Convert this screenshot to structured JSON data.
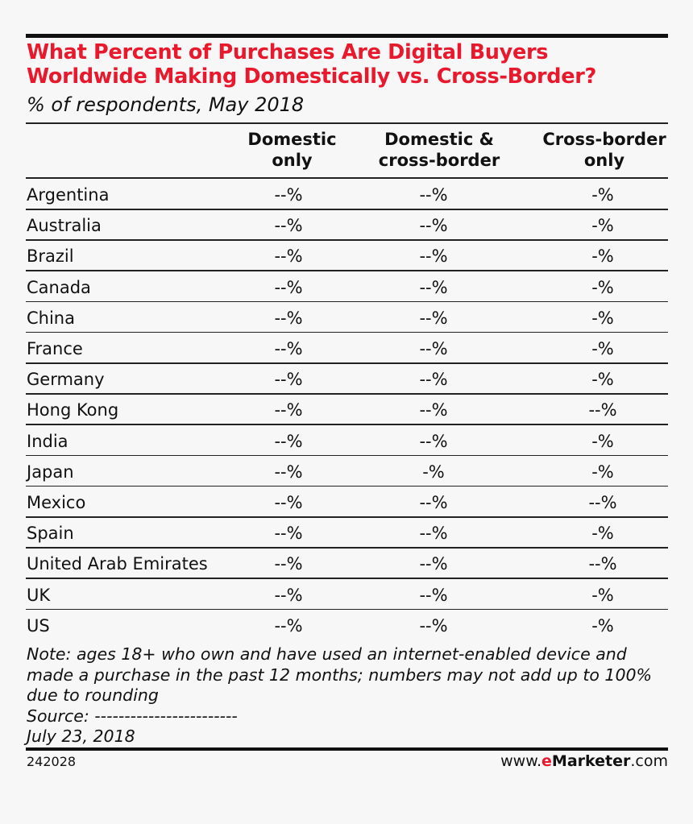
{
  "chart_data": {
    "type": "table",
    "title": "What Percent of Purchases Are Digital Buyers Worldwide Making Domestically vs. Cross-Border?",
    "subtitle": "% of respondents, May 2018",
    "columns": [
      "Domestic only",
      "Domestic & cross-border",
      "Cross-border only"
    ],
    "column_headers": [
      [
        "Domestic",
        "only"
      ],
      [
        "Domestic &",
        "cross-border"
      ],
      [
        "Cross-border",
        "only"
      ]
    ],
    "rows": [
      {
        "label": "Argentina",
        "values": [
          "--%",
          "--%",
          "-%"
        ]
      },
      {
        "label": "Australia",
        "values": [
          "--%",
          "--%",
          "-%"
        ]
      },
      {
        "label": "Brazil",
        "values": [
          "--%",
          "--%",
          "-%"
        ]
      },
      {
        "label": "Canada",
        "values": [
          "--%",
          "--%",
          "-%"
        ]
      },
      {
        "label": "China",
        "values": [
          "--%",
          "--%",
          "-%"
        ]
      },
      {
        "label": "France",
        "values": [
          "--%",
          "--%",
          "-%"
        ]
      },
      {
        "label": "Germany",
        "values": [
          "--%",
          "--%",
          "-%"
        ]
      },
      {
        "label": "Hong Kong",
        "values": [
          "--%",
          "--%",
          "--%"
        ]
      },
      {
        "label": "India",
        "values": [
          "--%",
          "--%",
          "-%"
        ]
      },
      {
        "label": "Japan",
        "values": [
          "--%",
          "-%",
          "-%"
        ]
      },
      {
        "label": "Mexico",
        "values": [
          "--%",
          "--%",
          "--%"
        ]
      },
      {
        "label": "Spain",
        "values": [
          "--%",
          "--%",
          "-%"
        ]
      },
      {
        "label": "United Arab Emirates",
        "values": [
          "--%",
          "--%",
          "--%"
        ]
      },
      {
        "label": "UK",
        "values": [
          "--%",
          "--%",
          "-%"
        ]
      },
      {
        "label": "US",
        "values": [
          "--%",
          "--%",
          "-%"
        ]
      }
    ]
  },
  "note": {
    "line1": "Note: ages 18+ who own and have used an internet-enabled device and",
    "line2": "made a purchase in the past 12 months; numbers may not add up to 100%",
    "line3": "due to rounding",
    "source": "Source: ------------------------",
    "date": "July 23, 2018"
  },
  "footer": {
    "id": "242028",
    "brand_prefix": "www.",
    "brand_accent": "e",
    "brand_bold": "Marketer",
    "brand_suffix": ".com"
  },
  "colors": {
    "title": "#e8192c",
    "text": "#111111",
    "background": "#f7f7f7"
  }
}
